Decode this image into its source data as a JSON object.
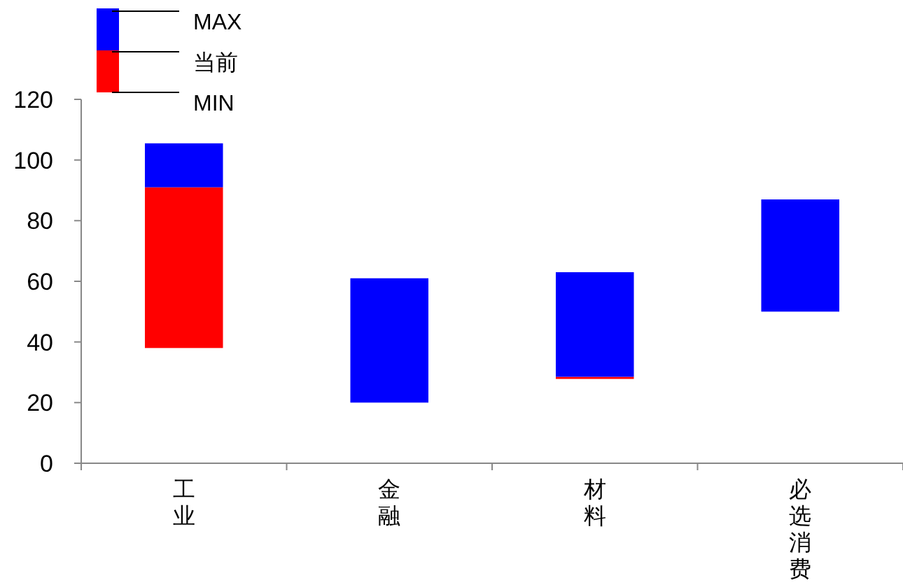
{
  "chart_data": {
    "type": "bar",
    "categories": [
      "工业",
      "金融",
      "材料",
      "必选消费"
    ],
    "series": [
      {
        "color": "#ff0000",
        "base": [
          38,
          null,
          28,
          null
        ],
        "values": [
          53,
          null,
          0.5,
          null
        ]
      },
      {
        "color": "#0000ff",
        "base": [
          91,
          20,
          28.5,
          50
        ],
        "values": [
          14.5,
          41,
          34.5,
          37
        ]
      }
    ],
    "ylim": [
      0,
      120
    ],
    "yticks": [
      0,
      20,
      40,
      60,
      80,
      100,
      120
    ],
    "annotations": [
      "MAX",
      "当前",
      "MIN"
    ]
  }
}
